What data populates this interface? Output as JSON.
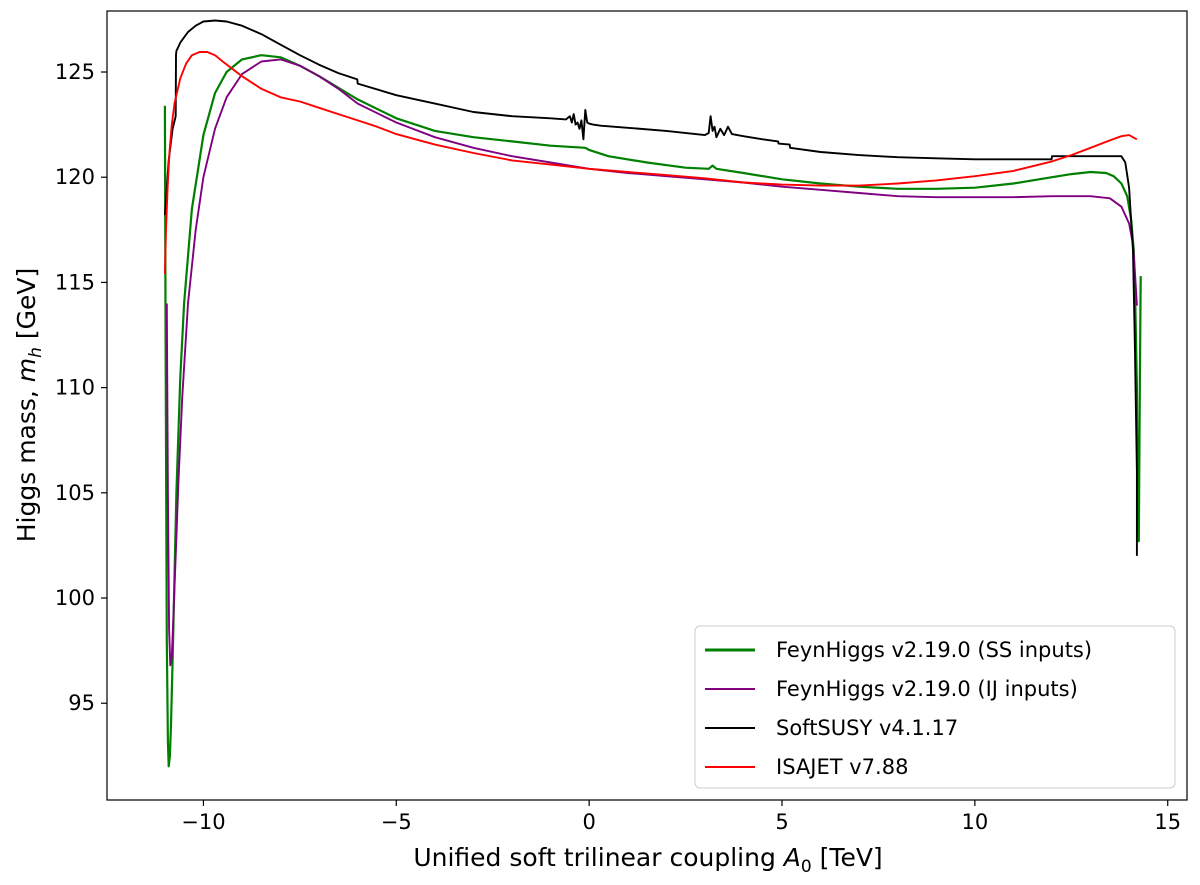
{
  "chart_data": {
    "type": "line",
    "title": "",
    "xlabel": "Unified soft trilinear coupling",
    "xlabel_symbol": "A",
    "xlabel_subscript": "0",
    "xlabel_unit": "[TeV]",
    "ylabel": "Higgs mass,",
    "ylabel_symbol": "m",
    "ylabel_subscript": "h",
    "ylabel_unit": "[GeV]",
    "xlim": [
      -12.5,
      15.5
    ],
    "ylim": [
      90.4,
      127.9
    ],
    "xticks": [
      -10,
      -5,
      0,
      5,
      10,
      15
    ],
    "xtick_labels": [
      "−10",
      "−5",
      "0",
      "5",
      "10",
      "15"
    ],
    "yticks": [
      95,
      100,
      105,
      110,
      115,
      120,
      125
    ],
    "ytick_labels": [
      "95",
      "100",
      "105",
      "110",
      "115",
      "120",
      "125"
    ],
    "grid": false,
    "legend_position": "lower-right",
    "series": [
      {
        "name": "FeynHiggs v2.19.0 (SS inputs)",
        "color": "#008000",
        "x": [
          -11.0,
          -10.98,
          -10.95,
          -10.92,
          -10.9,
          -10.87,
          -10.84,
          -10.8,
          -10.75,
          -10.7,
          -10.6,
          -10.5,
          -10.3,
          -10.0,
          -9.7,
          -9.4,
          -9.0,
          -8.5,
          -8.0,
          -7.5,
          -7.0,
          -6.0,
          -5.0,
          -4.0,
          -3.0,
          -2.0,
          -1.0,
          -0.1,
          0.0,
          0.5,
          1.5,
          2.5,
          3.1,
          3.2,
          3.3,
          4.0,
          5.0,
          6.0,
          7.0,
          8.0,
          9.0,
          10.0,
          11.0,
          12.0,
          12.5,
          13.0,
          13.4,
          13.6,
          13.8,
          13.95,
          14.05,
          14.12,
          14.16,
          14.2,
          14.22,
          14.25,
          14.28,
          14.3,
          14.3
        ],
        "y": [
          123.4,
          112.0,
          98.0,
          93.2,
          92.0,
          92.5,
          94.0,
          97.0,
          101.0,
          105.0,
          110.5,
          114.0,
          118.5,
          122.0,
          124.0,
          125.0,
          125.6,
          125.8,
          125.7,
          125.3,
          124.8,
          123.7,
          122.8,
          122.2,
          121.9,
          121.7,
          121.5,
          121.4,
          121.3,
          121.0,
          120.7,
          120.45,
          120.4,
          120.55,
          120.4,
          120.2,
          119.9,
          119.7,
          119.55,
          119.45,
          119.45,
          119.5,
          119.7,
          120.0,
          120.15,
          120.25,
          120.2,
          120.05,
          119.7,
          119.1,
          118.0,
          116.5,
          114.0,
          110.0,
          106.0,
          102.7,
          110.5,
          115.3,
          115.3
        ]
      },
      {
        "name": "FeynHiggs v2.19.0 (IJ inputs)",
        "color": "#800080",
        "x": [
          -10.95,
          -10.92,
          -10.89,
          -10.86,
          -10.82,
          -10.78,
          -10.72,
          -10.65,
          -10.55,
          -10.4,
          -10.2,
          -10.0,
          -9.7,
          -9.4,
          -9.0,
          -8.5,
          -8.0,
          -7.5,
          -7.0,
          -6.5,
          -6.0,
          -5.0,
          -4.0,
          -3.0,
          -2.0,
          -1.0,
          0.0,
          1.0,
          2.0,
          3.0,
          4.0,
          5.0,
          6.0,
          7.0,
          8.0,
          9.0,
          10.0,
          11.0,
          12.0,
          13.0,
          13.5,
          13.8,
          14.0,
          14.1,
          14.15,
          14.2
        ],
        "y": [
          114.0,
          105.0,
          98.5,
          96.8,
          97.2,
          99.0,
          102.0,
          105.5,
          109.5,
          114.0,
          117.5,
          120.0,
          122.3,
          123.8,
          124.9,
          125.5,
          125.6,
          125.3,
          124.8,
          124.2,
          123.5,
          122.6,
          121.9,
          121.4,
          121.0,
          120.7,
          120.4,
          120.2,
          120.05,
          119.9,
          119.75,
          119.55,
          119.4,
          119.25,
          119.1,
          119.05,
          119.05,
          119.05,
          119.1,
          119.1,
          119.0,
          118.6,
          117.8,
          116.8,
          115.5,
          113.9
        ]
      },
      {
        "name": "SoftSUSY v4.1.17",
        "color": "#000000",
        "x": [
          -11.0,
          -10.95,
          -10.9,
          -10.8,
          -10.72,
          -10.71,
          -10.7,
          -10.6,
          -10.4,
          -10.2,
          -10.0,
          -9.7,
          -9.4,
          -9.0,
          -8.5,
          -8.0,
          -7.5,
          -7.0,
          -6.5,
          -6.01,
          -6.0,
          -5.0,
          -4.0,
          -3.0,
          -2.0,
          -1.0,
          -0.6,
          -0.5,
          -0.45,
          -0.4,
          -0.35,
          -0.3,
          -0.25,
          -0.2,
          -0.15,
          -0.1,
          -0.05,
          0.0,
          0.1,
          0.3,
          1.0,
          2.0,
          3.0,
          3.1,
          3.15,
          3.2,
          3.25,
          3.3,
          3.4,
          3.5,
          3.6,
          3.7,
          4.0,
          4.5,
          4.9,
          4.91,
          5.2,
          5.21,
          6.0,
          7.0,
          8.0,
          9.0,
          10.0,
          11.0,
          11.99,
          12.0,
          13.0,
          13.8,
          13.9,
          14.0,
          14.1,
          14.15,
          14.2,
          14.2
        ],
        "y": [
          118.2,
          119.5,
          120.8,
          122.3,
          122.9,
          125.8,
          126.0,
          126.4,
          126.9,
          127.2,
          127.4,
          127.45,
          127.4,
          127.2,
          126.8,
          126.3,
          125.8,
          125.35,
          124.95,
          124.65,
          124.45,
          123.9,
          123.5,
          123.1,
          122.9,
          122.8,
          122.75,
          122.9,
          122.6,
          123.0,
          122.5,
          122.6,
          122.3,
          122.7,
          121.8,
          123.2,
          122.6,
          122.55,
          122.5,
          122.45,
          122.35,
          122.2,
          122.0,
          122.1,
          122.9,
          122.2,
          122.4,
          121.9,
          122.3,
          122.0,
          122.4,
          122.05,
          121.95,
          121.8,
          121.7,
          121.6,
          121.55,
          121.4,
          121.2,
          121.05,
          120.95,
          120.9,
          120.85,
          120.85,
          120.85,
          121.0,
          121.0,
          121.0,
          120.7,
          119.5,
          116.5,
          112.0,
          106.0,
          102.0
        ],
        "x_note": ""
      },
      {
        "name": "ISAJET v7.88",
        "color": "#ff0000",
        "x": [
          -11.0,
          -10.97,
          -10.93,
          -10.88,
          -10.82,
          -10.75,
          -10.6,
          -10.45,
          -10.3,
          -10.1,
          -9.9,
          -9.7,
          -9.5,
          -9.0,
          -8.5,
          -8.0,
          -7.5,
          -7.0,
          -6.5,
          -6.0,
          -5.5,
          -5.0,
          -4.5,
          -4.0,
          -3.0,
          -2.0,
          -1.0,
          0.0,
          1.0,
          2.0,
          3.0,
          4.0,
          5.0,
          6.0,
          7.0,
          8.0,
          9.0,
          10.0,
          11.0,
          12.0,
          12.5,
          13.0,
          13.5,
          13.8,
          14.0,
          14.15,
          14.2
        ],
        "y": [
          115.4,
          117.5,
          119.5,
          121.2,
          122.5,
          123.5,
          124.7,
          125.4,
          125.8,
          125.95,
          125.95,
          125.8,
          125.5,
          124.8,
          124.2,
          123.8,
          123.6,
          123.3,
          123.0,
          122.7,
          122.4,
          122.05,
          121.8,
          121.55,
          121.15,
          120.8,
          120.6,
          120.4,
          120.25,
          120.1,
          119.95,
          119.75,
          119.65,
          119.6,
          119.6,
          119.7,
          119.85,
          120.05,
          120.3,
          120.75,
          121.05,
          121.4,
          121.75,
          121.95,
          122.0,
          121.85,
          121.8
        ]
      }
    ]
  }
}
